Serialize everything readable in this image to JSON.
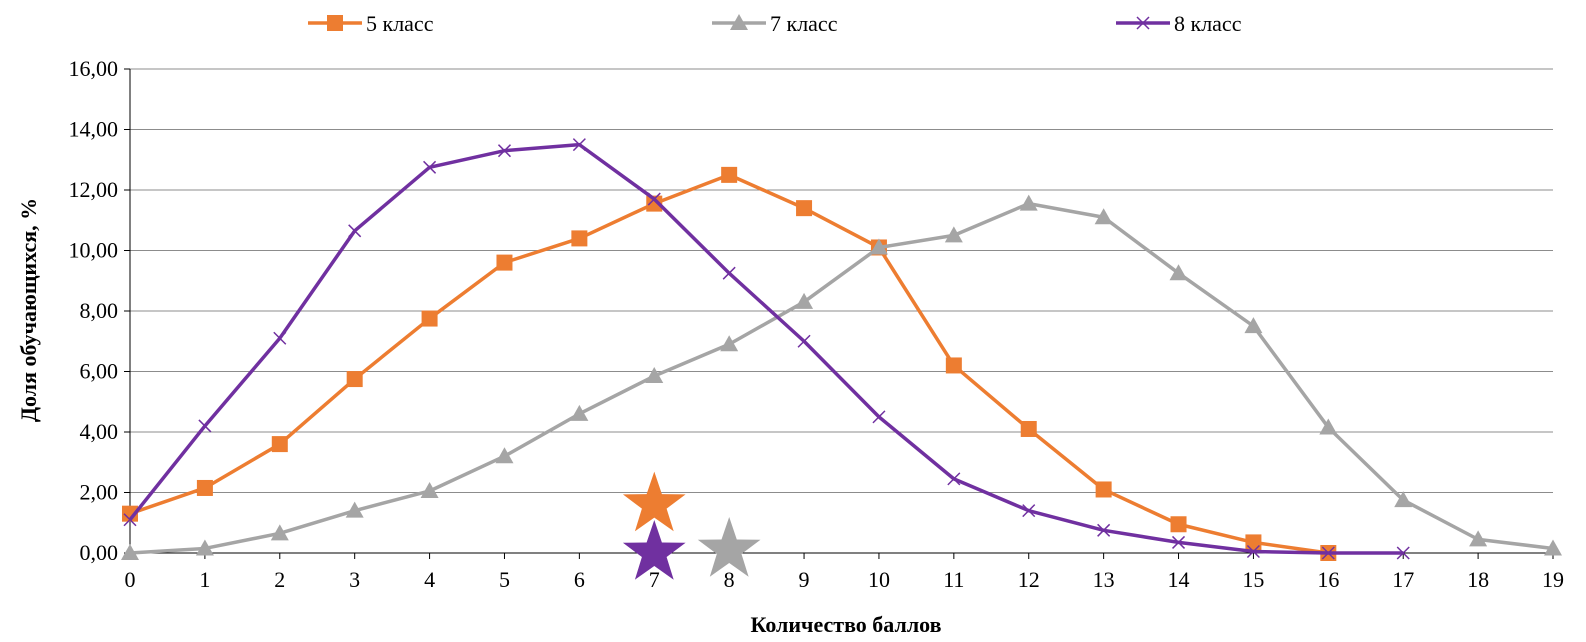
{
  "chart_data": {
    "type": "line",
    "title": "",
    "xlabel": "Количество баллов",
    "ylabel": "Доля обучающихся, %",
    "x": [
      0,
      1,
      2,
      3,
      4,
      5,
      6,
      7,
      8,
      9,
      10,
      11,
      12,
      13,
      14,
      15,
      16,
      17,
      18,
      19
    ],
    "x_tick_labels": [
      "0",
      "1",
      "2",
      "3",
      "4",
      "5",
      "6",
      "7",
      "8",
      "9",
      "10",
      "11",
      "12",
      "13",
      "14",
      "15",
      "16",
      "17",
      "18",
      "19"
    ],
    "ylim": [
      0,
      16
    ],
    "y_tick_labels": [
      "0,00",
      "2,00",
      "4,00",
      "6,00",
      "8,00",
      "10,00",
      "12,00",
      "14,00",
      "16,00"
    ],
    "grid": "horizontal",
    "legend_position": "top",
    "series": [
      {
        "name": "5 класс",
        "color": "#ED7D31",
        "marker": "square",
        "x": [
          0,
          1,
          2,
          3,
          4,
          5,
          6,
          7,
          8,
          9,
          10,
          11,
          12,
          13,
          14,
          15,
          16
        ],
        "values": [
          1.3,
          2.15,
          3.6,
          5.75,
          7.75,
          9.6,
          10.4,
          11.55,
          12.5,
          11.4,
          10.1,
          6.2,
          4.1,
          2.1,
          0.95,
          0.35,
          0.0
        ]
      },
      {
        "name": "7 класс",
        "color": "#A5A5A5",
        "marker": "triangle",
        "x": [
          0,
          1,
          2,
          3,
          4,
          5,
          6,
          7,
          8,
          9,
          10,
          11,
          12,
          13,
          14,
          15,
          16,
          17,
          18,
          19
        ],
        "values": [
          0.0,
          0.15,
          0.65,
          1.4,
          2.05,
          3.2,
          4.6,
          5.85,
          6.9,
          8.3,
          10.1,
          10.5,
          11.55,
          11.1,
          9.25,
          7.5,
          4.15,
          1.75,
          0.45,
          0.15
        ]
      },
      {
        "name": "8 класс",
        "color": "#7030A0",
        "marker": "x",
        "x": [
          0,
          1,
          2,
          3,
          4,
          5,
          6,
          7,
          8,
          9,
          10,
          11,
          12,
          13,
          14,
          15,
          16,
          17
        ],
        "values": [
          1.1,
          4.2,
          7.1,
          10.65,
          12.75,
          13.3,
          13.5,
          11.7,
          9.25,
          7.0,
          4.5,
          2.45,
          1.4,
          0.75,
          0.35,
          0.05,
          0.0,
          0.0
        ]
      }
    ],
    "annotations": [
      {
        "type": "star",
        "x": 7,
        "y": 1.6,
        "color": "#ED7D31",
        "series": "5 класс"
      },
      {
        "type": "star",
        "x": 7,
        "y": 0.0,
        "color": "#7030A0",
        "series": "8 класс"
      },
      {
        "type": "star",
        "x": 8,
        "y": 0.1,
        "color": "#A5A5A5",
        "series": "7 класс"
      }
    ]
  }
}
